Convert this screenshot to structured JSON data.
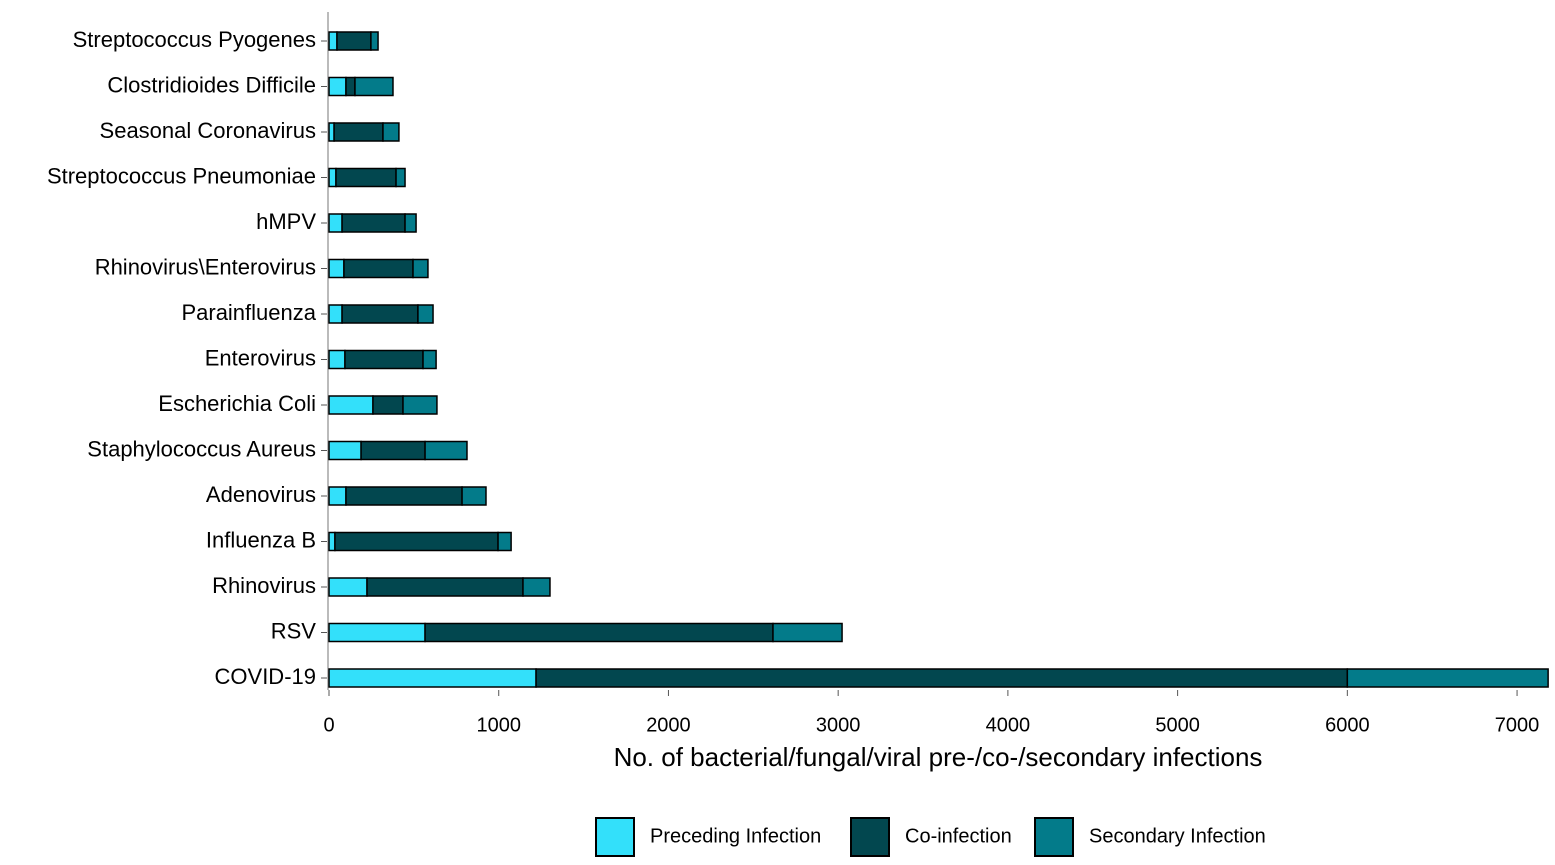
{
  "chart_data": {
    "type": "stacked-bar-horizontal",
    "xlabel": "No. of bacterial/fungal/viral pre-/co-/secondary infections",
    "categories": [
      "Streptococcus Pyogenes",
      "Clostridioides Difficile",
      "Seasonal Coronavirus",
      "Streptococcus Pneumoniae",
      "hMPV",
      "Rhinovirus\\Enterovirus",
      "Parainfluenza",
      "Enterovirus",
      "Escherichia Coli",
      "Staphylococcus Aureus",
      "Adenovirus",
      "Influenza B",
      "Rhinovirus",
      "RSV",
      "COVID-19"
    ],
    "series": [
      {
        "name": "Preceding Infection",
        "color": "#33e0fa",
        "values": [
          47,
          100,
          30,
          41,
          77,
          88,
          77,
          94,
          259,
          189,
          100,
          35,
          224,
          566,
          1220
        ]
      },
      {
        "name": "Co-infection",
        "color": "#02474f",
        "values": [
          200,
          53,
          288,
          354,
          371,
          407,
          447,
          460,
          177,
          377,
          684,
          961,
          919,
          2050,
          4780
        ]
      },
      {
        "name": "Secondary Infection",
        "color": "#037b8a",
        "values": [
          42,
          224,
          94,
          53,
          65,
          88,
          89,
          77,
          200,
          247,
          141,
          77,
          159,
          407,
          1183
        ]
      }
    ],
    "xlim": [
      0,
      7200
    ],
    "xticks": [
      0,
      1000,
      2000,
      3000,
      4000,
      5000,
      6000,
      7000
    ],
    "legend": "bottom"
  }
}
